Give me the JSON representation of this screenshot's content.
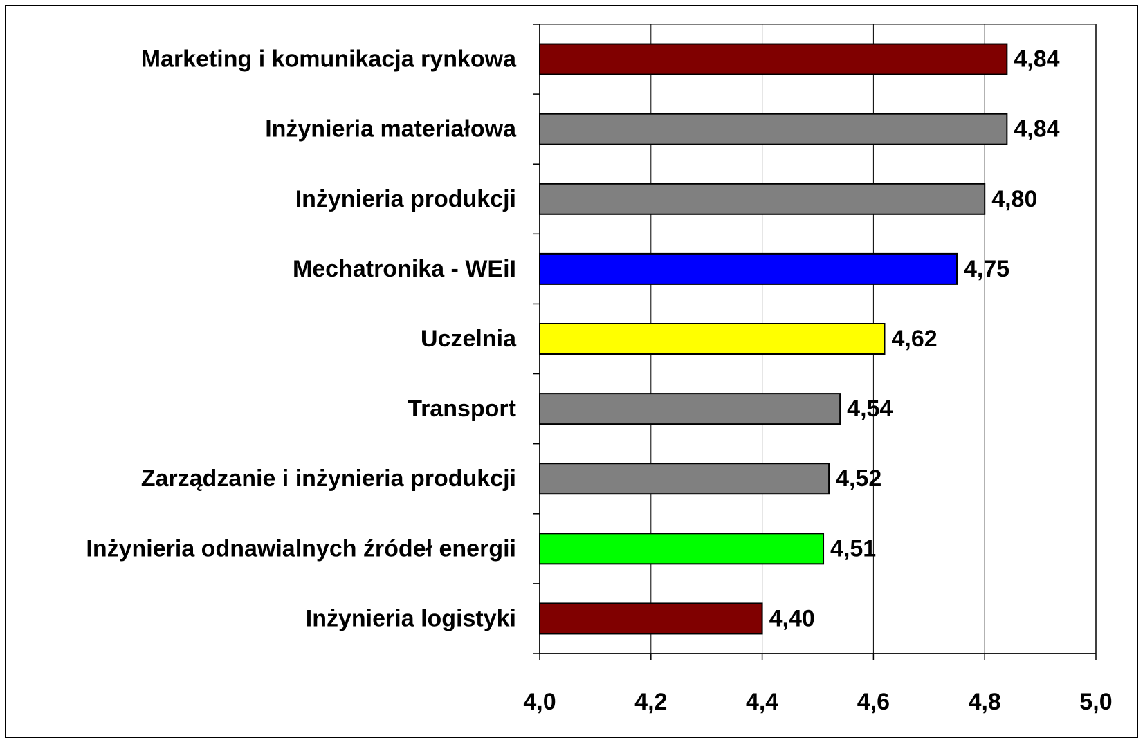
{
  "chart_data": {
    "type": "barh",
    "categories": [
      "Marketing i komunikacja rynkowa",
      "Inżynieria materiałowa",
      "Inżynieria produkcji",
      "Mechatronika - WEiI",
      "Uczelnia",
      "Transport",
      "Zarządzanie i inżynieria produkcji",
      "Inżynieria odnawialnych źródeł energii",
      "Inżynieria logistyki"
    ],
    "values": [
      4.84,
      4.84,
      4.8,
      4.75,
      4.62,
      4.54,
      4.52,
      4.51,
      4.4
    ],
    "value_labels": [
      "4,84",
      "4,84",
      "4,80",
      "4,75",
      "4,62",
      "4,54",
      "4,52",
      "4,51",
      "4,40"
    ],
    "colors": [
      "#800000",
      "#808080",
      "#808080",
      "#0000ff",
      "#ffff00",
      "#808080",
      "#808080",
      "#00ff00",
      "#800000"
    ],
    "xlim": [
      4.0,
      5.0
    ],
    "xticks": [
      {
        "value": 4.0,
        "label": "4,0"
      },
      {
        "value": 4.2,
        "label": "4,2"
      },
      {
        "value": 4.4,
        "label": "4,4"
      },
      {
        "value": 4.6,
        "label": "4,6"
      },
      {
        "value": 4.8,
        "label": "4,8"
      },
      {
        "value": 5.0,
        "label": "5,0"
      }
    ],
    "grid": true
  }
}
